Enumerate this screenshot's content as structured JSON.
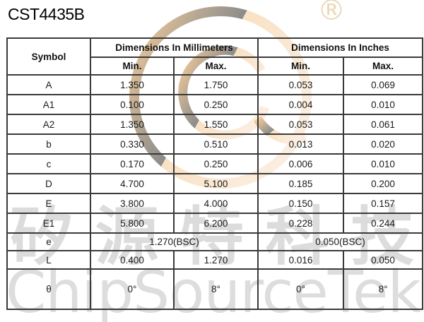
{
  "page": {
    "title": "CST4435B"
  },
  "watermarks": {
    "registered_symbol": "®",
    "chinese_text": "矽源特科技",
    "brand_text": "ChipSourceTek",
    "logo_orange_color": "#f2a43c",
    "logo_pale_color": "#f8ddc0",
    "gray_color": "#d7d7d7"
  },
  "table": {
    "header": {
      "symbol_label": "Symbol",
      "mm_label": "Dimensions In Millimeters",
      "inch_label": "Dimensions In Inches",
      "min_label": "Min.",
      "max_label": "Max."
    },
    "rows": [
      {
        "symbol": "A",
        "mm_min": "1.350",
        "mm_max": "1.750",
        "in_min": "0.053",
        "in_max": "0.069"
      },
      {
        "symbol": "A1",
        "mm_min": "0.100",
        "mm_max": "0.250",
        "in_min": "0.004",
        "in_max": "0.010"
      },
      {
        "symbol": "A2",
        "mm_min": "1.350",
        "mm_max": "1.550",
        "in_min": "0.053",
        "in_max": "0.061"
      },
      {
        "symbol": "b",
        "mm_min": "0.330",
        "mm_max": "0.510",
        "in_min": "0.013",
        "in_max": "0.020"
      },
      {
        "symbol": "c",
        "mm_min": "0.170",
        "mm_max": "0.250",
        "in_min": "0.006",
        "in_max": "0.010"
      },
      {
        "symbol": "D",
        "mm_min": "4.700",
        "mm_max": "5.100",
        "in_min": "0.185",
        "in_max": "0.200"
      },
      {
        "symbol": "E",
        "mm_min": "3.800",
        "mm_max": "4.000",
        "in_min": "0.150",
        "in_max": "0.157"
      },
      {
        "symbol": "E1",
        "mm_min": "5.800",
        "mm_max": "6.200",
        "in_min": "0.228",
        "in_max": "0.244"
      },
      {
        "symbol": "e",
        "span": true,
        "mm_span": "1.270(BSC)",
        "in_span": "0.050(BSC)"
      },
      {
        "symbol": "L",
        "mm_min": "0.400",
        "mm_max": "1.270",
        "in_min": "0.016",
        "in_max": "0.050"
      },
      {
        "symbol": "θ",
        "mm_min": "0°",
        "mm_max": "8°",
        "in_min": "0°",
        "in_max": "8°"
      }
    ]
  }
}
